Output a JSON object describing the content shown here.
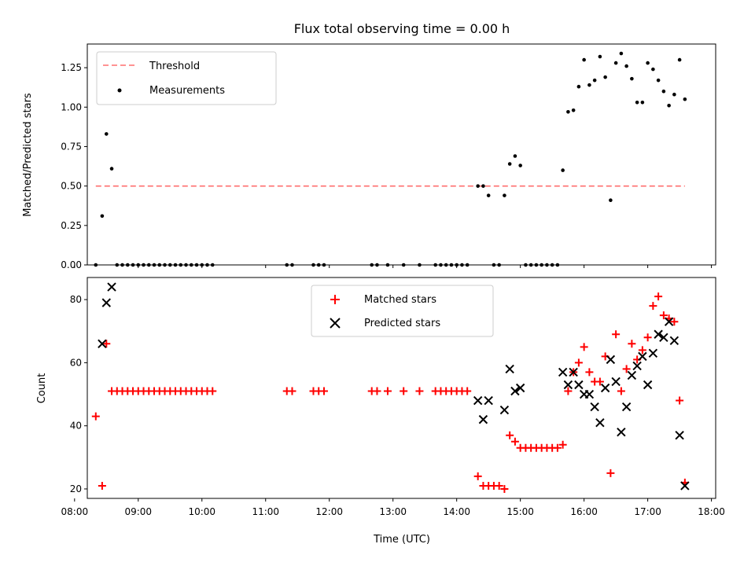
{
  "chart_data": [
    {
      "type": "scatter",
      "title": "Flux total observing time = 0.00 h",
      "xlabel": "",
      "ylabel": "Matched/Predicted stars",
      "x_unit": "time (UTC)",
      "xlim": [
        "08:12",
        "18:04"
      ],
      "ylim": [
        0,
        1.4
      ],
      "yticks": [
        0.0,
        0.25,
        0.5,
        0.75,
        1.0,
        1.25
      ],
      "ytick_labels": [
        "0.00",
        "0.25",
        "0.50",
        "0.75",
        "1.00",
        "1.25"
      ],
      "legend_position": "upper-left",
      "threshold": {
        "name": "Threshold",
        "color": "#ff6e6e",
        "style": "dashed",
        "y": 0.5,
        "x_range": [
          "08:20",
          "17:35"
        ]
      },
      "series": [
        {
          "name": "Measurements",
          "color": "#000000",
          "marker": "dot",
          "points": [
            [
              "08:20",
              0.0
            ],
            [
              "08:26",
              0.31
            ],
            [
              "08:30",
              0.83
            ],
            [
              "08:35",
              0.61
            ],
            [
              "08:40",
              0.0
            ],
            [
              "08:45",
              0.0
            ],
            [
              "08:50",
              0.0
            ],
            [
              "08:55",
              0.0
            ],
            [
              "09:00",
              0.0
            ],
            [
              "09:05",
              0.0
            ],
            [
              "09:10",
              0.0
            ],
            [
              "09:15",
              0.0
            ],
            [
              "09:20",
              0.0
            ],
            [
              "09:25",
              0.0
            ],
            [
              "09:30",
              0.0
            ],
            [
              "09:35",
              0.0
            ],
            [
              "09:40",
              0.0
            ],
            [
              "09:45",
              0.0
            ],
            [
              "09:50",
              0.0
            ],
            [
              "09:55",
              0.0
            ],
            [
              "10:00",
              0.0
            ],
            [
              "10:05",
              0.0
            ],
            [
              "10:10",
              0.0
            ],
            [
              "11:20",
              0.0
            ],
            [
              "11:25",
              0.0
            ],
            [
              "11:45",
              0.0
            ],
            [
              "11:50",
              0.0
            ],
            [
              "11:55",
              0.0
            ],
            [
              "12:40",
              0.0
            ],
            [
              "12:45",
              0.0
            ],
            [
              "12:55",
              0.0
            ],
            [
              "13:10",
              0.0
            ],
            [
              "13:25",
              0.0
            ],
            [
              "13:40",
              0.0
            ],
            [
              "13:45",
              0.0
            ],
            [
              "13:50",
              0.0
            ],
            [
              "13:55",
              0.0
            ],
            [
              "14:00",
              0.0
            ],
            [
              "14:05",
              0.0
            ],
            [
              "14:10",
              0.0
            ],
            [
              "14:20",
              0.5
            ],
            [
              "14:25",
              0.5
            ],
            [
              "14:30",
              0.44
            ],
            [
              "14:35",
              0.0
            ],
            [
              "14:40",
              0.0
            ],
            [
              "14:45",
              0.44
            ],
            [
              "14:50",
              0.64
            ],
            [
              "14:55",
              0.69
            ],
            [
              "15:00",
              0.63
            ],
            [
              "15:05",
              0.0
            ],
            [
              "15:10",
              0.0
            ],
            [
              "15:15",
              0.0
            ],
            [
              "15:20",
              0.0
            ],
            [
              "15:25",
              0.0
            ],
            [
              "15:30",
              0.0
            ],
            [
              "15:35",
              0.0
            ],
            [
              "15:40",
              0.6
            ],
            [
              "15:45",
              0.97
            ],
            [
              "15:50",
              0.98
            ],
            [
              "15:55",
              1.13
            ],
            [
              "16:00",
              1.3
            ],
            [
              "16:05",
              1.14
            ],
            [
              "16:10",
              1.17
            ],
            [
              "16:15",
              1.32
            ],
            [
              "16:20",
              1.19
            ],
            [
              "16:25",
              0.41
            ],
            [
              "16:30",
              1.28
            ],
            [
              "16:35",
              1.34
            ],
            [
              "16:40",
              1.26
            ],
            [
              "16:45",
              1.18
            ],
            [
              "16:50",
              1.03
            ],
            [
              "16:55",
              1.03
            ],
            [
              "17:00",
              1.28
            ],
            [
              "17:05",
              1.24
            ],
            [
              "17:10",
              1.17
            ],
            [
              "17:15",
              1.1
            ],
            [
              "17:20",
              1.01
            ],
            [
              "17:25",
              1.08
            ],
            [
              "17:30",
              1.3
            ],
            [
              "17:35",
              1.05
            ]
          ]
        }
      ]
    },
    {
      "type": "scatter",
      "title": "",
      "xlabel": "Time (UTC)",
      "ylabel": "Count",
      "x_unit": "time (UTC)",
      "xlim": [
        "08:12",
        "18:04"
      ],
      "ylim": [
        17,
        87
      ],
      "xticks": [
        "08:00",
        "09:00",
        "10:00",
        "11:00",
        "12:00",
        "13:00",
        "14:00",
        "15:00",
        "16:00",
        "17:00",
        "18:00"
      ],
      "yticks": [
        20,
        40,
        60,
        80
      ],
      "ytick_labels": [
        "20",
        "40",
        "60",
        "80"
      ],
      "legend_position": "upper-center",
      "series": [
        {
          "name": "Matched stars",
          "color": "#ff0000",
          "marker": "plus",
          "points": [
            [
              "08:20",
              43
            ],
            [
              "08:26",
              21
            ],
            [
              "08:30",
              66
            ],
            [
              "08:35",
              51
            ],
            [
              "08:40",
              51
            ],
            [
              "08:45",
              51
            ],
            [
              "08:50",
              51
            ],
            [
              "08:55",
              51
            ],
            [
              "09:00",
              51
            ],
            [
              "09:05",
              51
            ],
            [
              "09:10",
              51
            ],
            [
              "09:15",
              51
            ],
            [
              "09:20",
              51
            ],
            [
              "09:25",
              51
            ],
            [
              "09:30",
              51
            ],
            [
              "09:35",
              51
            ],
            [
              "09:40",
              51
            ],
            [
              "09:45",
              51
            ],
            [
              "09:50",
              51
            ],
            [
              "09:55",
              51
            ],
            [
              "10:00",
              51
            ],
            [
              "10:05",
              51
            ],
            [
              "10:10",
              51
            ],
            [
              "11:20",
              51
            ],
            [
              "11:25",
              51
            ],
            [
              "11:45",
              51
            ],
            [
              "11:50",
              51
            ],
            [
              "11:55",
              51
            ],
            [
              "12:40",
              51
            ],
            [
              "12:45",
              51
            ],
            [
              "12:55",
              51
            ],
            [
              "13:10",
              51
            ],
            [
              "13:25",
              51
            ],
            [
              "13:40",
              51
            ],
            [
              "13:45",
              51
            ],
            [
              "13:50",
              51
            ],
            [
              "13:55",
              51
            ],
            [
              "14:00",
              51
            ],
            [
              "14:05",
              51
            ],
            [
              "14:10",
              51
            ],
            [
              "14:20",
              24
            ],
            [
              "14:25",
              21
            ],
            [
              "14:30",
              21
            ],
            [
              "14:35",
              21
            ],
            [
              "14:40",
              21
            ],
            [
              "14:45",
              20
            ],
            [
              "14:50",
              37
            ],
            [
              "14:55",
              35
            ],
            [
              "15:00",
              33
            ],
            [
              "15:05",
              33
            ],
            [
              "15:10",
              33
            ],
            [
              "15:15",
              33
            ],
            [
              "15:20",
              33
            ],
            [
              "15:25",
              33
            ],
            [
              "15:30",
              33
            ],
            [
              "15:35",
              33
            ],
            [
              "15:40",
              34
            ],
            [
              "15:45",
              51
            ],
            [
              "15:50",
              57
            ],
            [
              "15:55",
              60
            ],
            [
              "16:00",
              65
            ],
            [
              "16:05",
              57
            ],
            [
              "16:10",
              54
            ],
            [
              "16:15",
              54
            ],
            [
              "16:20",
              62
            ],
            [
              "16:25",
              25
            ],
            [
              "16:30",
              69
            ],
            [
              "16:35",
              51
            ],
            [
              "16:40",
              58
            ],
            [
              "16:45",
              66
            ],
            [
              "16:50",
              61
            ],
            [
              "16:55",
              64
            ],
            [
              "17:00",
              68
            ],
            [
              "17:05",
              78
            ],
            [
              "17:10",
              81
            ],
            [
              "17:15",
              75
            ],
            [
              "17:20",
              74
            ],
            [
              "17:25",
              73
            ],
            [
              "17:30",
              48
            ],
            [
              "17:35",
              22
            ]
          ]
        },
        {
          "name": "Predicted stars",
          "color": "#000000",
          "marker": "x",
          "points": [
            [
              "08:26",
              66
            ],
            [
              "08:30",
              79
            ],
            [
              "08:35",
              84
            ],
            [
              "14:20",
              48
            ],
            [
              "14:25",
              42
            ],
            [
              "14:30",
              48
            ],
            [
              "14:45",
              45
            ],
            [
              "14:50",
              58
            ],
            [
              "14:55",
              51
            ],
            [
              "15:00",
              52
            ],
            [
              "15:40",
              57
            ],
            [
              "15:45",
              53
            ],
            [
              "15:50",
              57
            ],
            [
              "15:55",
              53
            ],
            [
              "16:00",
              50
            ],
            [
              "16:05",
              50
            ],
            [
              "16:10",
              46
            ],
            [
              "16:15",
              41
            ],
            [
              "16:20",
              52
            ],
            [
              "16:25",
              61
            ],
            [
              "16:30",
              54
            ],
            [
              "16:35",
              38
            ],
            [
              "16:40",
              46
            ],
            [
              "16:45",
              56
            ],
            [
              "16:50",
              59
            ],
            [
              "16:55",
              62
            ],
            [
              "17:00",
              53
            ],
            [
              "17:05",
              63
            ],
            [
              "17:10",
              69
            ],
            [
              "17:15",
              68
            ],
            [
              "17:20",
              73
            ],
            [
              "17:25",
              67
            ],
            [
              "17:30",
              37
            ],
            [
              "17:35",
              21
            ]
          ]
        }
      ]
    }
  ]
}
